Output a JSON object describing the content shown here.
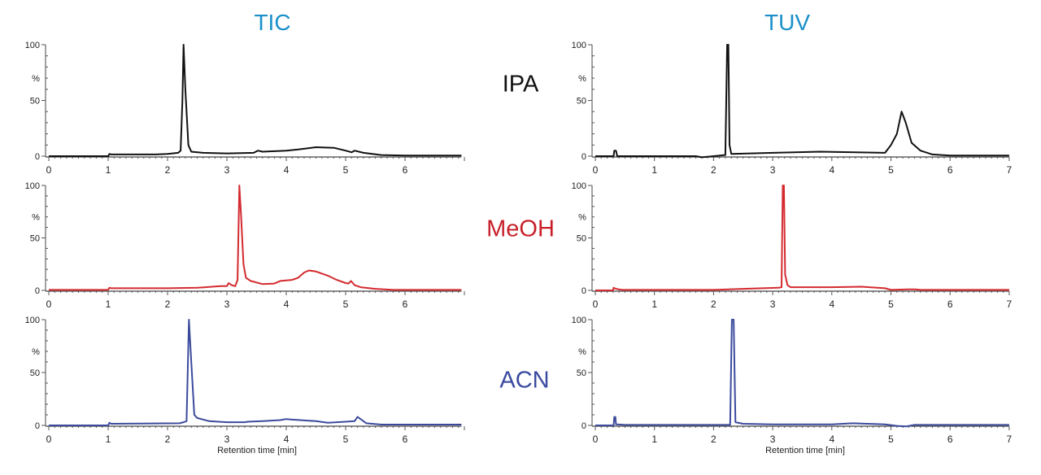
{
  "columns": [
    "TIC",
    "TUV"
  ],
  "rows": [
    {
      "label": "IPA",
      "color": "#111111"
    },
    {
      "label": "MeOH",
      "color": "#c8202a"
    },
    {
      "label": "ACN",
      "color": "#3a4aa0"
    }
  ],
  "title_color": "#1a8fc9",
  "xlabel": "Retention time [min]",
  "ylabel": "%",
  "chart_data": [
    {
      "type": "line",
      "column": "TIC",
      "row": "IPA",
      "color": "#111111",
      "ylabel": "%",
      "xlabel": "",
      "xlim": [
        0,
        6.95
      ],
      "ylim": [
        0,
        100
      ],
      "xticks": [
        0,
        1,
        2,
        3,
        4,
        5,
        6
      ],
      "yticks": [
        0,
        50,
        100
      ],
      "points": [
        [
          0,
          0
        ],
        [
          1,
          0
        ],
        [
          1.02,
          2
        ],
        [
          1.05,
          1.5
        ],
        [
          1.8,
          1.5
        ],
        [
          2.0,
          2
        ],
        [
          2.18,
          3
        ],
        [
          2.22,
          5
        ],
        [
          2.25,
          50
        ],
        [
          2.27,
          100
        ],
        [
          2.3,
          60
        ],
        [
          2.35,
          10
        ],
        [
          2.4,
          4
        ],
        [
          2.6,
          3
        ],
        [
          3.0,
          2.5
        ],
        [
          3.45,
          3
        ],
        [
          3.52,
          5
        ],
        [
          3.6,
          4
        ],
        [
          4.0,
          5
        ],
        [
          4.2,
          6
        ],
        [
          4.5,
          8
        ],
        [
          4.8,
          7.5
        ],
        [
          5.0,
          5
        ],
        [
          5.1,
          3.5
        ],
        [
          5.15,
          5
        ],
        [
          5.3,
          3
        ],
        [
          5.6,
          1
        ],
        [
          6.0,
          0.5
        ],
        [
          6.95,
          0.5
        ]
      ]
    },
    {
      "type": "line",
      "column": "TUV",
      "row": "IPA",
      "color": "#111111",
      "ylabel": "%",
      "xlabel": "",
      "xlim": [
        0,
        7
      ],
      "ylim": [
        0,
        100
      ],
      "xticks": [
        0,
        1,
        2,
        3,
        4,
        5,
        6,
        7
      ],
      "yticks": [
        0,
        50,
        100
      ],
      "points": [
        [
          0,
          0
        ],
        [
          0.31,
          0
        ],
        [
          0.32,
          5
        ],
        [
          0.35,
          5
        ],
        [
          0.37,
          0
        ],
        [
          1.7,
          0
        ],
        [
          1.8,
          -1
        ],
        [
          2.0,
          0
        ],
        [
          2.2,
          1
        ],
        [
          2.23,
          100
        ],
        [
          2.25,
          100
        ],
        [
          2.27,
          10
        ],
        [
          2.3,
          2
        ],
        [
          3,
          3
        ],
        [
          3.8,
          4
        ],
        [
          4.9,
          3
        ],
        [
          5.0,
          10
        ],
        [
          5.1,
          20
        ],
        [
          5.18,
          40
        ],
        [
          5.25,
          30
        ],
        [
          5.35,
          12
        ],
        [
          5.5,
          5
        ],
        [
          5.7,
          1.5
        ],
        [
          6,
          0.5
        ],
        [
          7,
          0.5
        ]
      ]
    },
    {
      "type": "line",
      "column": "TIC",
      "row": "MeOH",
      "color": "#d42a2f",
      "ylabel": "%",
      "xlabel": "",
      "xlim": [
        0,
        6.95
      ],
      "ylim": [
        0,
        100
      ],
      "xticks": [
        0,
        1,
        2,
        3,
        4,
        5,
        6
      ],
      "yticks": [
        0,
        50,
        100
      ],
      "points": [
        [
          0,
          0.5
        ],
        [
          1,
          0.5
        ],
        [
          1.02,
          2.5
        ],
        [
          1.05,
          2
        ],
        [
          2,
          2
        ],
        [
          2.5,
          2.5
        ],
        [
          2.9,
          4
        ],
        [
          3.0,
          4
        ],
        [
          3.03,
          7
        ],
        [
          3.08,
          5
        ],
        [
          3.14,
          4
        ],
        [
          3.18,
          10
        ],
        [
          3.21,
          100
        ],
        [
          3.24,
          70
        ],
        [
          3.28,
          25
        ],
        [
          3.32,
          12
        ],
        [
          3.4,
          9
        ],
        [
          3.6,
          6
        ],
        [
          3.8,
          6.5
        ],
        [
          3.9,
          9
        ],
        [
          4.1,
          10
        ],
        [
          4.2,
          12
        ],
        [
          4.3,
          17
        ],
        [
          4.38,
          19
        ],
        [
          4.5,
          18
        ],
        [
          4.7,
          14
        ],
        [
          4.85,
          10
        ],
        [
          5.0,
          7
        ],
        [
          5.05,
          6.5
        ],
        [
          5.09,
          9
        ],
        [
          5.15,
          5
        ],
        [
          5.25,
          3
        ],
        [
          5.5,
          1.5
        ],
        [
          5.8,
          0.5
        ],
        [
          6.95,
          0.5
        ]
      ]
    },
    {
      "type": "line",
      "column": "TUV",
      "row": "MeOH",
      "color": "#d42a2f",
      "ylabel": "%",
      "xlabel": "",
      "xlim": [
        0,
        7
      ],
      "ylim": [
        0,
        100
      ],
      "xticks": [
        0,
        1,
        2,
        3,
        4,
        5,
        6,
        7
      ],
      "yticks": [
        0,
        50,
        100
      ],
      "points": [
        [
          0,
          0
        ],
        [
          0.3,
          0
        ],
        [
          0.31,
          2.5
        ],
        [
          0.35,
          1.5
        ],
        [
          0.45,
          0.5
        ],
        [
          2,
          0.5
        ],
        [
          2.5,
          1.5
        ],
        [
          3.1,
          2.5
        ],
        [
          3.15,
          3
        ],
        [
          3.17,
          100
        ],
        [
          3.19,
          100
        ],
        [
          3.21,
          15
        ],
        [
          3.25,
          5
        ],
        [
          3.3,
          3
        ],
        [
          4,
          3
        ],
        [
          4.5,
          3.5
        ],
        [
          4.9,
          2
        ],
        [
          5.0,
          0.5
        ],
        [
          5.3,
          1
        ],
        [
          5.4,
          1
        ],
        [
          5.5,
          0.5
        ],
        [
          7,
          0.5
        ]
      ]
    },
    {
      "type": "line",
      "column": "TIC",
      "row": "ACN",
      "color": "#3c4a9c",
      "ylabel": "%",
      "xlabel": "Retention time [min]",
      "xlim": [
        0,
        6.95
      ],
      "ylim": [
        0,
        100
      ],
      "xticks": [
        0,
        1,
        2,
        3,
        4,
        5,
        6
      ],
      "yticks": [
        0,
        50,
        100
      ],
      "points": [
        [
          0,
          0
        ],
        [
          1,
          0
        ],
        [
          1.02,
          2.5
        ],
        [
          1.05,
          1.5
        ],
        [
          2.2,
          2
        ],
        [
          2.27,
          3
        ],
        [
          2.32,
          4
        ],
        [
          2.36,
          100
        ],
        [
          2.4,
          60
        ],
        [
          2.45,
          10
        ],
        [
          2.5,
          7
        ],
        [
          2.7,
          4
        ],
        [
          3,
          3
        ],
        [
          3.3,
          3
        ],
        [
          3.35,
          3.5
        ],
        [
          3.6,
          4
        ],
        [
          3.9,
          5
        ],
        [
          4.0,
          6
        ],
        [
          4.1,
          5.5
        ],
        [
          4.5,
          4
        ],
        [
          4.7,
          2.5
        ],
        [
          5.0,
          3.5
        ],
        [
          5.15,
          4
        ],
        [
          5.2,
          8
        ],
        [
          5.25,
          6
        ],
        [
          5.35,
          2
        ],
        [
          5.6,
          0.8
        ],
        [
          6.95,
          0.8
        ]
      ]
    },
    {
      "type": "line",
      "column": "TUV",
      "row": "ACN",
      "color": "#3c4a9c",
      "ylabel": "%",
      "xlabel": "Retention time [min]",
      "xlim": [
        0,
        7
      ],
      "ylim": [
        0,
        100
      ],
      "xticks": [
        0,
        1,
        2,
        3,
        4,
        5,
        6,
        7
      ],
      "yticks": [
        0,
        50,
        100
      ],
      "points": [
        [
          0,
          0
        ],
        [
          0.31,
          0
        ],
        [
          0.32,
          8
        ],
        [
          0.34,
          8
        ],
        [
          0.35,
          1
        ],
        [
          0.5,
          0.5
        ],
        [
          2.28,
          0.5
        ],
        [
          2.31,
          100
        ],
        [
          2.34,
          100
        ],
        [
          2.37,
          3
        ],
        [
          2.5,
          1.5
        ],
        [
          3,
          1
        ],
        [
          4,
          1
        ],
        [
          4.35,
          2
        ],
        [
          4.9,
          1
        ],
        [
          5.1,
          -0.5
        ],
        [
          5.25,
          -1
        ],
        [
          5.4,
          0.5
        ],
        [
          7,
          0.5
        ]
      ]
    }
  ]
}
